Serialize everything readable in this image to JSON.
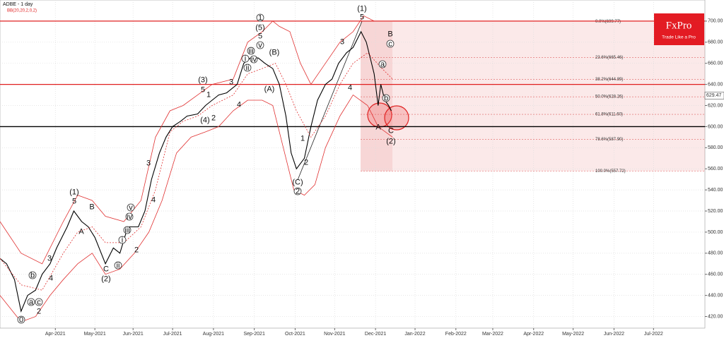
{
  "header": {
    "symbol": "ADBE  - 1 day",
    "indicator": "BB(20,20,2,0,2)"
  },
  "logo": {
    "name": "FxPro",
    "tagline": "Trade Like a Pro"
  },
  "chart_data": {
    "type": "line",
    "xlim": [
      0,
      535
    ],
    "ylim": [
      409,
      720
    ],
    "grid": true,
    "xticks": [
      {
        "value": 42,
        "label": "Apr-2021"
      },
      {
        "value": 72,
        "label": "May-2021"
      },
      {
        "value": 101,
        "label": "Jun-2021"
      },
      {
        "value": 131,
        "label": "Jul-2021"
      },
      {
        "value": 162,
        "label": "Aug-2021"
      },
      {
        "value": 193,
        "label": "Sep-2021"
      },
      {
        "value": 224,
        "label": "Oct-2021"
      },
      {
        "value": 254,
        "label": "Nov-2021"
      },
      {
        "value": 285,
        "label": "Dec-2021"
      },
      {
        "value": 315,
        "label": "Jan-2022"
      },
      {
        "value": 346,
        "label": "Feb-2022"
      },
      {
        "value": 374,
        "label": "Mar-2022"
      },
      {
        "value": 405,
        "label": "Apr-2022"
      },
      {
        "value": 435,
        "label": "May-2022"
      },
      {
        "value": 466,
        "label": "Jun-2022"
      },
      {
        "value": 496,
        "label": "Jul-2022"
      }
    ],
    "yticks": [
      {
        "value": 420,
        "label": "420.00"
      },
      {
        "value": 440,
        "label": "440.00"
      },
      {
        "value": 460,
        "label": "460.00"
      },
      {
        "value": 480,
        "label": "480.00"
      },
      {
        "value": 500,
        "label": "500.00"
      },
      {
        "value": 520,
        "label": "520.00"
      },
      {
        "value": 540,
        "label": "540.00"
      },
      {
        "value": 560,
        "label": "560.00"
      },
      {
        "value": 580,
        "label": "580.00"
      },
      {
        "value": 600,
        "label": "600.00"
      },
      {
        "value": 620,
        "label": "620.00"
      },
      {
        "value": 640,
        "label": "640.00"
      },
      {
        "value": 660,
        "label": "660.00"
      },
      {
        "value": 680,
        "label": "680.00"
      },
      {
        "value": 700,
        "label": "700.00"
      }
    ],
    "series": [
      {
        "color": "#000000",
        "x": [
          0,
          5,
          11,
          16,
          21,
          27,
          32,
          38,
          43,
          51,
          56,
          62,
          67,
          72,
          80,
          86,
          91,
          97,
          105,
          110,
          115,
          121,
          126,
          131,
          137,
          142,
          150,
          156,
          161,
          166,
          172,
          180,
          185,
          190,
          196,
          201,
          207,
          212,
          217,
          221,
          225,
          231,
          236,
          241,
          247,
          252,
          257,
          263,
          268,
          274,
          278,
          281,
          284,
          287,
          289,
          292,
          295,
          297
        ],
        "values": [
          475,
          470,
          455,
          425,
          440,
          445,
          460,
          470,
          485,
          505,
          520,
          510,
          505,
          495,
          470,
          485,
          480,
          505,
          505,
          520,
          550,
          575,
          590,
          600,
          605,
          610,
          612,
          620,
          625,
          630,
          632,
          640,
          660,
          665,
          665,
          660,
          655,
          640,
          610,
          575,
          560,
          570,
          600,
          625,
          640,
          645,
          660,
          670,
          675,
          690,
          680,
          665,
          650,
          620,
          640,
          625,
          620,
          615
        ]
      },
      {
        "color": "#e03030",
        "x": [
          0,
          16,
          32,
          48,
          59,
          70,
          80,
          94,
          107,
          118,
          129,
          139,
          150,
          161,
          177,
          188,
          199,
          207,
          212,
          220,
          228,
          236,
          247,
          258,
          268,
          276,
          284,
          292,
          298
        ],
        "values": [
          510,
          480,
          470,
          510,
          535,
          530,
          515,
          510,
          530,
          590,
          615,
          620,
          630,
          640,
          645,
          680,
          690,
          700,
          695,
          690,
          660,
          640,
          660,
          680,
          690,
          705,
          700,
          700,
          700
        ]
      },
      {
        "color": "#e03030",
        "dashed": true,
        "x": [
          0,
          16,
          32,
          48,
          59,
          70,
          80,
          94,
          107,
          118,
          129,
          139,
          150,
          161,
          177,
          188,
          199,
          209,
          217,
          225,
          236,
          247,
          258,
          268,
          279,
          290,
          298
        ],
        "values": [
          475,
          450,
          445,
          480,
          500,
          505,
          490,
          490,
          505,
          540,
          595,
          605,
          610,
          620,
          630,
          650,
          655,
          660,
          640,
          615,
          590,
          610,
          640,
          660,
          670,
          655,
          645
        ]
      },
      {
        "color": "#e03030",
        "x": [
          0,
          16,
          27,
          38,
          48,
          59,
          70,
          80,
          91,
          102,
          113,
          123,
          134,
          145,
          156,
          166,
          177,
          188,
          199,
          207,
          215,
          223,
          231,
          239,
          247,
          258,
          268,
          279,
          287,
          298
        ],
        "values": [
          440,
          415,
          420,
          440,
          455,
          470,
          480,
          460,
          465,
          480,
          500,
          530,
          575,
          590,
          595,
          600,
          615,
          625,
          625,
          620,
          580,
          540,
          535,
          545,
          580,
          610,
          630,
          620,
          600,
          590
        ]
      }
    ],
    "key_levels": [
      {
        "value": 700,
        "color": "#e02020"
      },
      {
        "value": 640,
        "color": "#e02020"
      },
      {
        "value": 600,
        "color": "#000000"
      }
    ],
    "fib_levels": [
      {
        "value": 699.77,
        "label": "0.0%(699.77)"
      },
      {
        "value": 665.46,
        "label": "23.6%(665.46)"
      },
      {
        "value": 644.89,
        "label": "38.2%(644.89)"
      },
      {
        "value": 628.26,
        "label": "50.0%(628.26)"
      },
      {
        "value": 611.6,
        "label": "61.8%(611.60)"
      },
      {
        "value": 587.9,
        "label": "78.6%(587.90)"
      },
      {
        "value": 557.72,
        "label": "100.0%(557.72)"
      }
    ],
    "last_price": 629.47,
    "annotations": [
      {
        "text": "0",
        "circled": true
      },
      {
        "text": "a",
        "circled": true
      },
      {
        "text": "b",
        "circled": true
      },
      {
        "text": "c",
        "circled": true
      },
      {
        "text": "2"
      },
      {
        "text": "3"
      },
      {
        "text": "4"
      },
      {
        "text": "(1)"
      },
      {
        "text": "5"
      },
      {
        "text": "A"
      },
      {
        "text": "B"
      },
      {
        "text": "C"
      },
      {
        "text": "(2)"
      },
      {
        "text": "i",
        "circled": true
      },
      {
        "text": "ii",
        "circled": true
      },
      {
        "text": "iii",
        "circled": true
      },
      {
        "text": "iv",
        "circled": true
      },
      {
        "text": "v",
        "circled": true
      },
      {
        "text": "2"
      },
      {
        "text": "3"
      },
      {
        "text": "4"
      },
      {
        "text": "(3)"
      },
      {
        "text": "5"
      },
      {
        "text": "1"
      },
      {
        "text": "(4)"
      },
      {
        "text": "2"
      },
      {
        "text": "3"
      },
      {
        "text": "4"
      },
      {
        "text": "1",
        "circled": true
      },
      {
        "text": "(5)"
      },
      {
        "text": "5"
      },
      {
        "text": "v",
        "circled": true
      },
      {
        "text": "iii",
        "circled": true
      },
      {
        "text": "i",
        "circled": true
      },
      {
        "text": "iv",
        "circled": true
      },
      {
        "text": "ii",
        "circled": true
      },
      {
        "text": "(B)"
      },
      {
        "text": "(A)"
      },
      {
        "text": "1"
      },
      {
        "text": "2"
      },
      {
        "text": "(C)"
      },
      {
        "text": "2",
        "circled": true
      },
      {
        "text": "3"
      },
      {
        "text": "4"
      },
      {
        "text": "(1)"
      },
      {
        "text": "5"
      },
      {
        "text": "B"
      },
      {
        "text": "c",
        "circled": true
      },
      {
        "text": "a",
        "circled": true
      },
      {
        "text": "b",
        "circled": true
      },
      {
        "text": "A"
      },
      {
        "text": "C"
      },
      {
        "text": "(2)"
      }
    ]
  }
}
